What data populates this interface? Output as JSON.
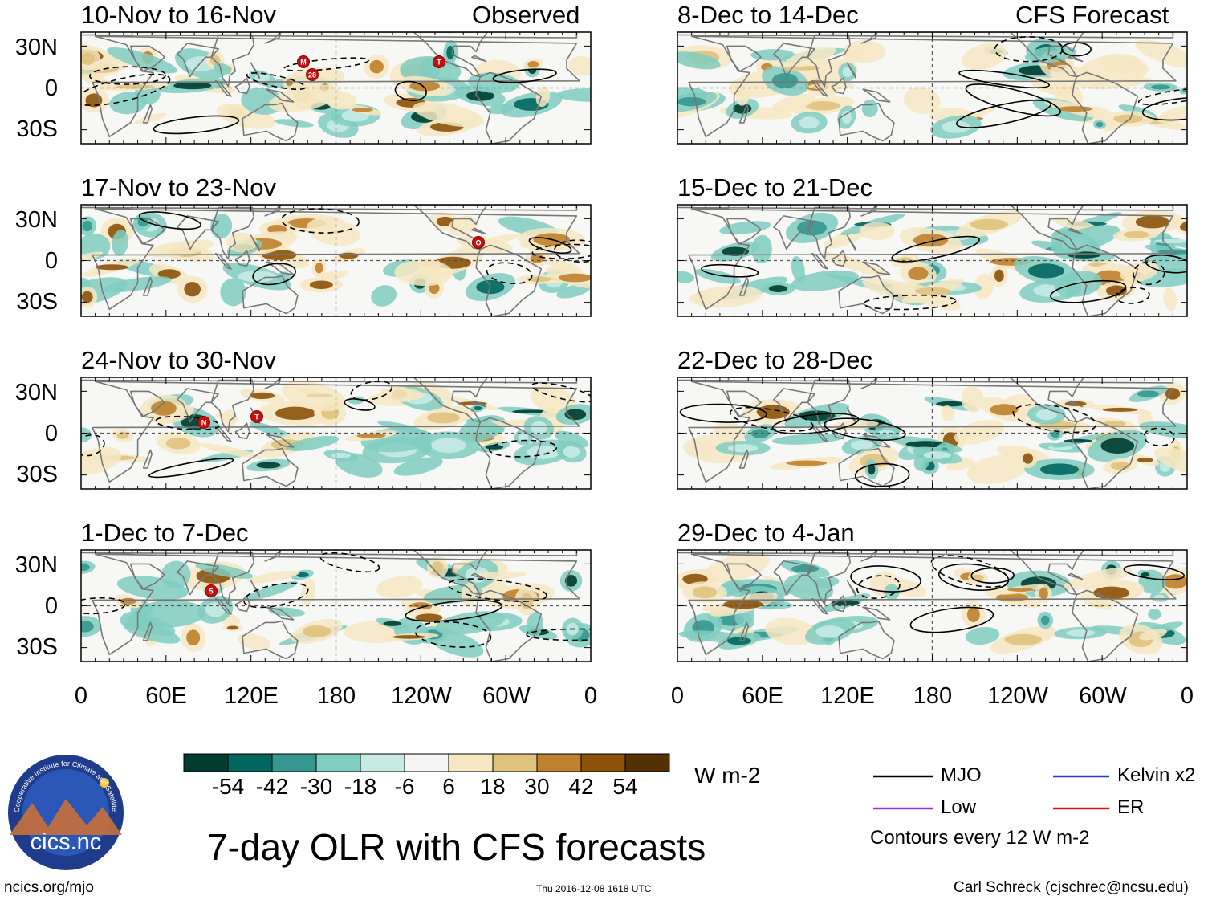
{
  "title": "7-day OLR with CFS forecasts",
  "columns": {
    "left": {
      "label": "Observed"
    },
    "right": {
      "label": "CFS Forecast"
    }
  },
  "panels_left": [
    {
      "period": "10-Nov to 16-Nov",
      "storms": [
        "M",
        "28",
        "T"
      ]
    },
    {
      "period": "17-Nov to 23-Nov",
      "storms": [
        "O"
      ]
    },
    {
      "period": "24-Nov to 30-Nov",
      "storms": [
        "N",
        "T"
      ]
    },
    {
      "period": "1-Dec to 7-Dec",
      "storms": [
        "5"
      ]
    }
  ],
  "panels_right": [
    {
      "period": "8-Dec to 14-Dec"
    },
    {
      "period": "15-Dec to 21-Dec"
    },
    {
      "period": "22-Dec to 28-Dec"
    },
    {
      "period": "29-Dec to 4-Jan"
    }
  ],
  "lat_labels": [
    "30N",
    "0",
    "30S"
  ],
  "lon_labels": [
    "0",
    "60E",
    "120E",
    "180",
    "120W",
    "60W",
    "0"
  ],
  "colorbar": {
    "ticks": [
      "-54",
      "-42",
      "-30",
      "-18",
      "-6",
      "6",
      "18",
      "30",
      "42",
      "54"
    ],
    "units": "W m-2",
    "colors": [
      "#003c30",
      "#01665e",
      "#35978f",
      "#80cdc1",
      "#c7eae5",
      "#f5f5f5",
      "#f6e8c3",
      "#dfc27d",
      "#bf812d",
      "#8c510a",
      "#543005"
    ]
  },
  "legend": {
    "items": [
      {
        "label": "MJO",
        "color": "#000000"
      },
      {
        "label": "Kelvin x2",
        "color": "#1f3fd6"
      },
      {
        "label": "Low",
        "color": "#9b30e0"
      },
      {
        "label": "ER",
        "color": "#e01010"
      }
    ],
    "note": "Contours every 12 W m-2"
  },
  "logo": {
    "text": "cics.nc",
    "ring_text": "Cooperative Institute for Climate and Satellites"
  },
  "footer": {
    "left": "ncics.org/mjo",
    "center": "Thu 2016-12-08 1618 UTC",
    "right": "Carl Schreck (cjschrec@ncsu.edu)"
  }
}
